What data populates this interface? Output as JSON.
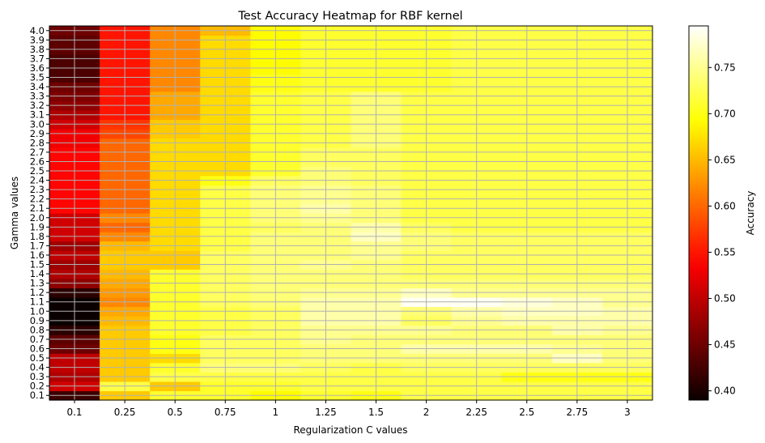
{
  "chart_data": {
    "type": "heatmap",
    "title": "Test Accuracy Heatmap for RBF kernel",
    "xlabel": "Regularization C values",
    "ylabel": "Gamma values",
    "colorbar_label": "Accuracy",
    "colormap": "hot",
    "clim": [
      0.39,
      0.795
    ],
    "colorbar_ticks": [
      "0.40",
      "0.45",
      "0.50",
      "0.55",
      "0.60",
      "0.65",
      "0.70",
      "0.75"
    ],
    "grid": true,
    "x": [
      "0.1",
      "0.25",
      "0.5",
      "0.75",
      "1",
      "1.25",
      "1.5",
      "2",
      "2.25",
      "2.5",
      "2.75",
      "3"
    ],
    "y": [
      "0.1",
      "0.2",
      "0.3",
      "0.4",
      "0.5",
      "0.6",
      "0.7",
      "0.8",
      "0.9",
      "1.0",
      "1.1",
      "1.2",
      "1.3",
      "1.4",
      "1.5",
      "1.6",
      "1.7",
      "1.8",
      "1.9",
      "2.0",
      "2.1",
      "2.2",
      "2.3",
      "2.4",
      "2.5",
      "2.6",
      "2.7",
      "2.8",
      "2.9",
      "3.0",
      "3.1",
      "3.2",
      "3.3",
      "3.4",
      "3.5",
      "3.6",
      "3.7",
      "3.8",
      "3.9",
      "4.0"
    ],
    "values": [
      [
        0.42,
        0.66,
        0.71,
        0.71,
        0.69,
        0.71,
        0.7,
        0.72,
        0.72,
        0.72,
        0.72,
        0.72
      ],
      [
        0.51,
        0.72,
        0.66,
        0.71,
        0.71,
        0.72,
        0.72,
        0.72,
        0.72,
        0.72,
        0.72,
        0.72
      ],
      [
        0.49,
        0.66,
        0.72,
        0.72,
        0.72,
        0.72,
        0.72,
        0.72,
        0.72,
        0.7,
        0.7,
        0.7
      ],
      [
        0.5,
        0.66,
        0.71,
        0.74,
        0.74,
        0.73,
        0.72,
        0.73,
        0.73,
        0.73,
        0.73,
        0.73
      ],
      [
        0.5,
        0.66,
        0.67,
        0.73,
        0.73,
        0.74,
        0.74,
        0.74,
        0.74,
        0.74,
        0.77,
        0.74
      ],
      [
        0.45,
        0.66,
        0.7,
        0.73,
        0.73,
        0.74,
        0.74,
        0.76,
        0.76,
        0.76,
        0.75,
        0.74
      ],
      [
        0.44,
        0.66,
        0.7,
        0.73,
        0.73,
        0.75,
        0.74,
        0.74,
        0.74,
        0.74,
        0.74,
        0.74
      ],
      [
        0.41,
        0.66,
        0.71,
        0.72,
        0.73,
        0.75,
        0.75,
        0.75,
        0.74,
        0.74,
        0.76,
        0.75
      ],
      [
        0.39,
        0.65,
        0.71,
        0.72,
        0.73,
        0.76,
        0.76,
        0.73,
        0.75,
        0.76,
        0.76,
        0.76
      ],
      [
        0.39,
        0.64,
        0.71,
        0.72,
        0.73,
        0.76,
        0.76,
        0.74,
        0.76,
        0.77,
        0.77,
        0.76
      ],
      [
        0.39,
        0.62,
        0.71,
        0.73,
        0.74,
        0.76,
        0.76,
        0.79,
        0.79,
        0.78,
        0.77,
        0.75
      ],
      [
        0.41,
        0.63,
        0.71,
        0.73,
        0.74,
        0.75,
        0.75,
        0.77,
        0.75,
        0.75,
        0.75,
        0.75
      ],
      [
        0.47,
        0.64,
        0.71,
        0.73,
        0.74,
        0.74,
        0.74,
        0.74,
        0.74,
        0.74,
        0.74,
        0.74
      ],
      [
        0.49,
        0.65,
        0.71,
        0.73,
        0.74,
        0.74,
        0.74,
        0.73,
        0.73,
        0.73,
        0.73,
        0.73
      ],
      [
        0.48,
        0.66,
        0.66,
        0.73,
        0.74,
        0.75,
        0.74,
        0.73,
        0.73,
        0.73,
        0.73,
        0.73
      ],
      [
        0.5,
        0.66,
        0.66,
        0.73,
        0.74,
        0.74,
        0.75,
        0.73,
        0.73,
        0.73,
        0.73,
        0.73
      ],
      [
        0.48,
        0.65,
        0.67,
        0.72,
        0.74,
        0.74,
        0.75,
        0.74,
        0.73,
        0.73,
        0.73,
        0.73
      ],
      [
        0.51,
        0.62,
        0.67,
        0.72,
        0.74,
        0.74,
        0.77,
        0.74,
        0.73,
        0.73,
        0.73,
        0.73
      ],
      [
        0.51,
        0.6,
        0.67,
        0.72,
        0.73,
        0.74,
        0.76,
        0.73,
        0.72,
        0.72,
        0.72,
        0.72
      ],
      [
        0.51,
        0.62,
        0.67,
        0.72,
        0.74,
        0.75,
        0.74,
        0.72,
        0.72,
        0.72,
        0.72,
        0.72
      ],
      [
        0.54,
        0.6,
        0.67,
        0.72,
        0.74,
        0.76,
        0.74,
        0.72,
        0.72,
        0.72,
        0.72,
        0.72
      ],
      [
        0.54,
        0.6,
        0.67,
        0.72,
        0.74,
        0.75,
        0.74,
        0.72,
        0.72,
        0.72,
        0.72,
        0.72
      ],
      [
        0.54,
        0.6,
        0.67,
        0.72,
        0.74,
        0.75,
        0.74,
        0.72,
        0.72,
        0.72,
        0.72,
        0.72
      ],
      [
        0.54,
        0.6,
        0.67,
        0.7,
        0.73,
        0.74,
        0.73,
        0.72,
        0.72,
        0.72,
        0.72,
        0.72
      ],
      [
        0.54,
        0.6,
        0.67,
        0.67,
        0.71,
        0.74,
        0.73,
        0.72,
        0.72,
        0.72,
        0.72,
        0.72
      ],
      [
        0.54,
        0.6,
        0.67,
        0.67,
        0.71,
        0.73,
        0.73,
        0.72,
        0.72,
        0.72,
        0.72,
        0.72
      ],
      [
        0.54,
        0.6,
        0.67,
        0.67,
        0.71,
        0.73,
        0.73,
        0.72,
        0.72,
        0.72,
        0.72,
        0.72
      ],
      [
        0.53,
        0.6,
        0.67,
        0.67,
        0.71,
        0.72,
        0.74,
        0.72,
        0.72,
        0.72,
        0.72,
        0.72
      ],
      [
        0.53,
        0.58,
        0.66,
        0.67,
        0.71,
        0.72,
        0.74,
        0.72,
        0.72,
        0.72,
        0.72,
        0.72
      ],
      [
        0.51,
        0.57,
        0.66,
        0.67,
        0.71,
        0.72,
        0.74,
        0.72,
        0.72,
        0.72,
        0.72,
        0.72
      ],
      [
        0.49,
        0.55,
        0.64,
        0.67,
        0.71,
        0.72,
        0.74,
        0.72,
        0.72,
        0.72,
        0.72,
        0.72
      ],
      [
        0.47,
        0.55,
        0.64,
        0.67,
        0.71,
        0.72,
        0.74,
        0.72,
        0.72,
        0.72,
        0.72,
        0.72
      ],
      [
        0.46,
        0.55,
        0.64,
        0.67,
        0.71,
        0.72,
        0.74,
        0.72,
        0.72,
        0.72,
        0.72,
        0.72
      ],
      [
        0.45,
        0.55,
        0.62,
        0.67,
        0.7,
        0.71,
        0.71,
        0.71,
        0.72,
        0.72,
        0.72,
        0.72
      ],
      [
        0.43,
        0.55,
        0.62,
        0.67,
        0.7,
        0.71,
        0.71,
        0.71,
        0.72,
        0.72,
        0.72,
        0.72
      ],
      [
        0.43,
        0.55,
        0.62,
        0.67,
        0.69,
        0.71,
        0.71,
        0.71,
        0.72,
        0.72,
        0.72,
        0.72
      ],
      [
        0.43,
        0.55,
        0.62,
        0.67,
        0.69,
        0.71,
        0.71,
        0.71,
        0.72,
        0.72,
        0.72,
        0.72
      ],
      [
        0.44,
        0.55,
        0.62,
        0.67,
        0.69,
        0.71,
        0.71,
        0.71,
        0.72,
        0.72,
        0.72,
        0.72
      ],
      [
        0.44,
        0.55,
        0.62,
        0.67,
        0.69,
        0.71,
        0.71,
        0.71,
        0.72,
        0.72,
        0.72,
        0.72
      ],
      [
        0.45,
        0.55,
        0.62,
        0.65,
        0.69,
        0.71,
        0.71,
        0.71,
        0.72,
        0.72,
        0.72,
        0.72
      ]
    ]
  }
}
